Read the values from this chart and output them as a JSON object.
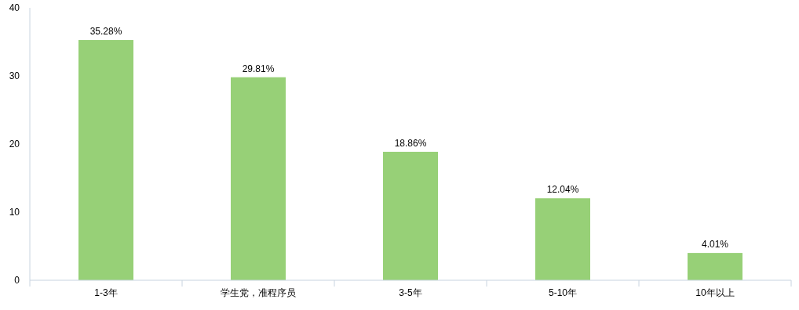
{
  "chart_data": {
    "type": "bar",
    "categories": [
      "1-3年",
      "学生党，准程序员",
      "3-5年",
      "5-10年",
      "10年以上"
    ],
    "values": [
      35.28,
      29.81,
      18.86,
      12.04,
      4.01
    ],
    "value_labels": [
      "35.28%",
      "29.81%",
      "18.86%",
      "12.04%",
      "4.01%"
    ],
    "color": "#97d077",
    "ylim": [
      0,
      40
    ],
    "yticks": [
      0,
      10,
      20,
      30,
      40
    ],
    "grid": false
  }
}
